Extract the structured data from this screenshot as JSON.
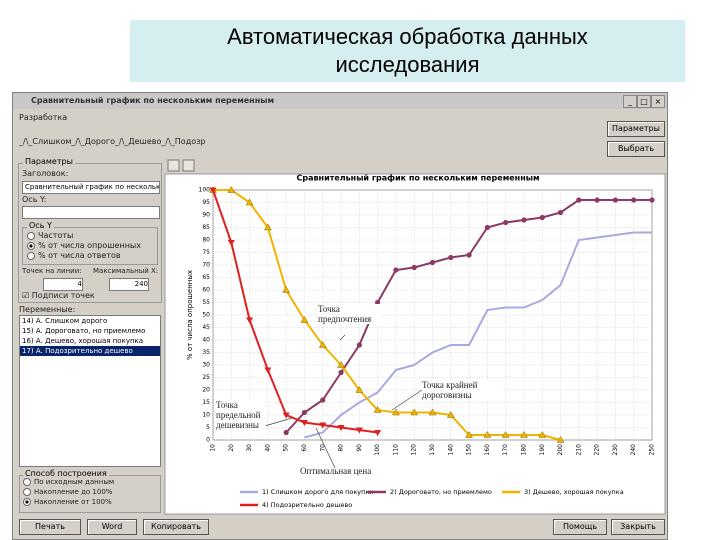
{
  "slide": {
    "title": "Автоматическая обработка данных исследования"
  },
  "window": {
    "title": "Сравнительный график по нескольким переменным",
    "menu": "Разработка",
    "tabs": "_/\\_Слишком_/\\_Дорого_/\\_Дешево_/\\_Подозр",
    "top_buttons": [
      "Параметры",
      "Выбрать"
    ],
    "params": {
      "group": "Параметры",
      "title_label": "Заголовок:",
      "title_value": "Сравнительный график по нескольким переменным",
      "y_label": "Ось Y:",
      "y_group": "Ось Y",
      "y_options": [
        "Частоты",
        "% от числа опрошенных",
        "% от числа ответов"
      ],
      "points_label": "Точек на линии:",
      "points_value": "4",
      "maxx_label": "Максимальный X:",
      "maxx_value": "240",
      "checkbox": "Подписи точек"
    },
    "variables_label": "Переменные:",
    "variables": [
      "14) А. Слишком дорого",
      "15) А. Дороговато, но приемлемо",
      "16) А. Дешево, хорошая покупка",
      "17) А. Подозрительно дешево"
    ],
    "build": {
      "group": "Способ построения",
      "options": [
        "По исходным данным",
        "Накопление до 100%",
        "Накопление от 100%"
      ]
    },
    "buttons_left": [
      "Печать",
      "Word",
      "Копировать"
    ],
    "buttons_right": [
      "Помощь",
      "Закрыть"
    ]
  },
  "chart_data": {
    "type": "line",
    "title": "Сравнительный график по нескольким переменным",
    "y_label": "% от числа опрошенных",
    "categories": [
      "10",
      "20",
      "30",
      "40",
      "50",
      "60",
      "70",
      "80",
      "90",
      "100",
      "110",
      "120",
      "130",
      "140",
      "150",
      "160",
      "170",
      "180",
      "190",
      "200",
      "210",
      "220",
      "230",
      "240",
      "250"
    ],
    "ylim": [
      0,
      100
    ],
    "yticks": [
      0,
      5,
      10,
      15,
      20,
      25,
      30,
      35,
      40,
      45,
      50,
      55,
      60,
      65,
      70,
      75,
      80,
      85,
      90,
      95,
      100
    ],
    "grid": true,
    "series": [
      {
        "name": "1) Слишком дорого для покупки",
        "color": "#a9a9e2",
        "marker": "none",
        "values": [
          null,
          null,
          null,
          null,
          null,
          1,
          3,
          10,
          15,
          19,
          28,
          30,
          35,
          38,
          38,
          52,
          53,
          53,
          56,
          62,
          80,
          81,
          82,
          83,
          83
        ]
      },
      {
        "name": "2) Дороговато, но приемлемо",
        "color": "#8b3a66",
        "marker": "circle",
        "values": [
          null,
          null,
          null,
          null,
          3,
          11,
          16,
          27,
          38,
          55,
          68,
          69,
          71,
          73,
          74,
          85,
          87,
          88,
          89,
          91,
          96,
          96,
          96,
          96,
          96
        ]
      },
      {
        "name": "3) Дешево, хорошая покупка",
        "color": "#f0b400",
        "marker": "triangle-up",
        "values": [
          100,
          100,
          95,
          85,
          60,
          48,
          38,
          30,
          20,
          12,
          11,
          11,
          11,
          10,
          2,
          2,
          2,
          2,
          2,
          0,
          null,
          null,
          null,
          null,
          null
        ]
      },
      {
        "name": "4) Подозрительно дешево",
        "color": "#e02020",
        "marker": "triangle-down",
        "values": [
          100,
          79,
          48,
          28,
          10,
          7,
          6,
          5,
          4,
          3,
          null,
          null,
          null,
          null,
          null,
          null,
          null,
          null,
          null,
          null,
          null,
          null,
          null,
          null,
          null
        ]
      }
    ],
    "annotations": [
      "Точка предпочтения",
      "Точка крайней дороговизны",
      "Точка предельной дешевизны",
      "Оптимальная цена"
    ]
  }
}
